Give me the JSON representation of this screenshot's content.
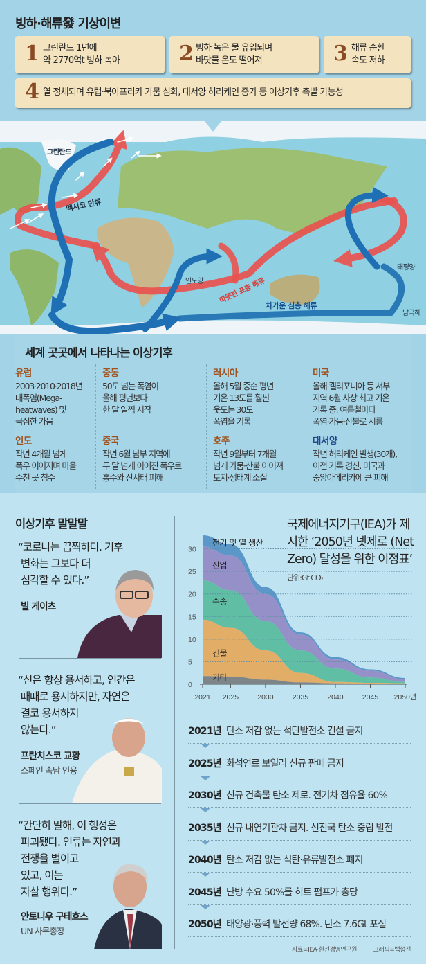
{
  "header": {
    "title": "빙하·해류發 기상이변"
  },
  "steps": [
    {
      "num": "1",
      "text": "그린란드 1년에\n약 2770억t 빙하 녹아"
    },
    {
      "num": "2",
      "text": "빙하 녹은 물 유입되며\n바닷물 온도 떨어져"
    },
    {
      "num": "3",
      "text": "해류 순환\n속도 저하"
    },
    {
      "num": "4",
      "text": "열 정체되며 유럽·북아프리카 가뭄 심화, 대서양 허리케인 증가 등 이상기후 촉발 가능성"
    }
  ],
  "map": {
    "labels": {
      "greenland": "그린란드",
      "gulf_stream": "멕시코 만류",
      "indian_ocean": "인도양",
      "pacific": "태평양",
      "southern_ocean": "남극해",
      "warm_current": "따뜻한 표층 해류",
      "cold_current": "차가운 심층 해류"
    },
    "colors": {
      "warm": "#e8534f",
      "cold": "#1e6fb3"
    }
  },
  "regions": {
    "title": "세계 곳곳에서 나타나는 이상기후",
    "items": [
      {
        "name": "유럽",
        "text": "2003·2010·2018년\n대폭염(Mega-\nheatwaves) 및\n극심한 가뭄"
      },
      {
        "name": "중동",
        "text": "50도 넘는 폭염이\n올해 평년보다\n한 달 일찍 시작"
      },
      {
        "name": "러시아",
        "text": "올해 5월 중순 평년\n기온 13도를 훨씬\n웃도는 30도\n폭염을 기록"
      },
      {
        "name": "미국",
        "text": "올해 캘리포니아 등 서부\n지역 6월 사상 최고 기온\n기록 중. 여름철마다\n폭염·가뭄·산불로 시름"
      },
      {
        "name": "인도",
        "text": "작년 4개월 넘게\n폭우 이어지며 마을\n수천 곳 침수"
      },
      {
        "name": "중국",
        "text": "작년 6월 남부 지역에\n두 달 넘게 이어진 폭우로\n홍수와 산사태 피해"
      },
      {
        "name": "호주",
        "text": "작년 9월부터 7개월\n넘게 가뭄·산불 이어져\n토지·생태계 소실"
      },
      {
        "name": "대서양",
        "text": "작년 허리케인 발생(30개),\n이전 기록 경신. 미국과\n중앙아메리카에 큰 피해"
      }
    ]
  },
  "quotes": {
    "title": "이상기후 말말말",
    "items": [
      {
        "text": "“코로나는 끔찍하다. 기후\n 변화는 그보다 더\n 심각할 수 있다.”",
        "who": "빌 게이츠",
        "role": ""
      },
      {
        "text": "“신은 항상 용서하고, 인간은\n 때때로 용서하지만, 자연은\n 결코 용서하지\n 않는다.”",
        "who": "프란치스코 교황",
        "role": "스페인 속담 인용"
      },
      {
        "text": "“간단히 말해, 이 행성은\n 파괴됐다. 인류는 자연과\n 전쟁을 벌이고\n 있고, 이는\n 자살 행위다.”",
        "who": "안토니우 구테흐스",
        "role": "UN 사무총장"
      }
    ]
  },
  "chart_data": {
    "type": "area",
    "stacked": true,
    "title": "국제에너지기구(IEA)가 제시한 ‘2050년 넷제로 (Net Zero) 달성을 위한 이정표’",
    "unit": "단위:Gt CO₂",
    "x": [
      2021,
      2025,
      2030,
      2035,
      2040,
      2045,
      2050
    ],
    "x_ticks": [
      "2021",
      "2025",
      "2030",
      "2035",
      "2040",
      "2045",
      "2050년"
    ],
    "y_ticks": [
      "0",
      "5",
      "10",
      "15",
      "20",
      "25",
      "30"
    ],
    "ylim": [
      0,
      33
    ],
    "grid": "horizontal dotted",
    "series": [
      {
        "name": "기타",
        "color": "#7d8589",
        "values": [
          1.8,
          1.7,
          1.0,
          0.4,
          0.2,
          0.1,
          0.1
        ]
      },
      {
        "name": "건물",
        "color": "#e2ad67",
        "values": [
          12.5,
          10.8,
          6.5,
          2.1,
          0.3,
          0.2,
          0.1
        ]
      },
      {
        "name": "수송",
        "color": "#5fbea4",
        "values": [
          8.7,
          8.3,
          6.5,
          5.0,
          3.0,
          1.2,
          0.3
        ]
      },
      {
        "name": "산업",
        "color": "#9690c9",
        "values": [
          7.5,
          7.7,
          6.0,
          3.5,
          2.0,
          1.5,
          0.6
        ]
      },
      {
        "name": "전기 및 열 생산",
        "color": "#5b97c8",
        "values": [
          2.5,
          2.5,
          1.5,
          0.5,
          0.5,
          0.3,
          0.3
        ]
      }
    ]
  },
  "timeline": [
    {
      "year": "2021년",
      "text": "탄소 저감 없는 석탄발전소 건설 금지"
    },
    {
      "year": "2025년",
      "text": "화석연료 보일러 신규 판매 금지"
    },
    {
      "year": "2030년",
      "text": "신규 건축물 탄소 제로. 전기차 점유율 60%"
    },
    {
      "year": "2035년",
      "text": "신규 내연기관차 금지. 선진국 탄소 중립 발전"
    },
    {
      "year": "2040년",
      "text": "탄소 저감 없는 석탄·유류발전소 폐지"
    },
    {
      "year": "2045년",
      "text": "난방 수요 50%를 히트 펌프가 충당"
    },
    {
      "year": "2050년",
      "text": "태양광·풍력 발전량 68%. 탄소 7.6Gt 포집"
    }
  ],
  "credits": {
    "source": "자료=IEA·한전경영연구원",
    "graphic": "그래픽=백형선"
  }
}
